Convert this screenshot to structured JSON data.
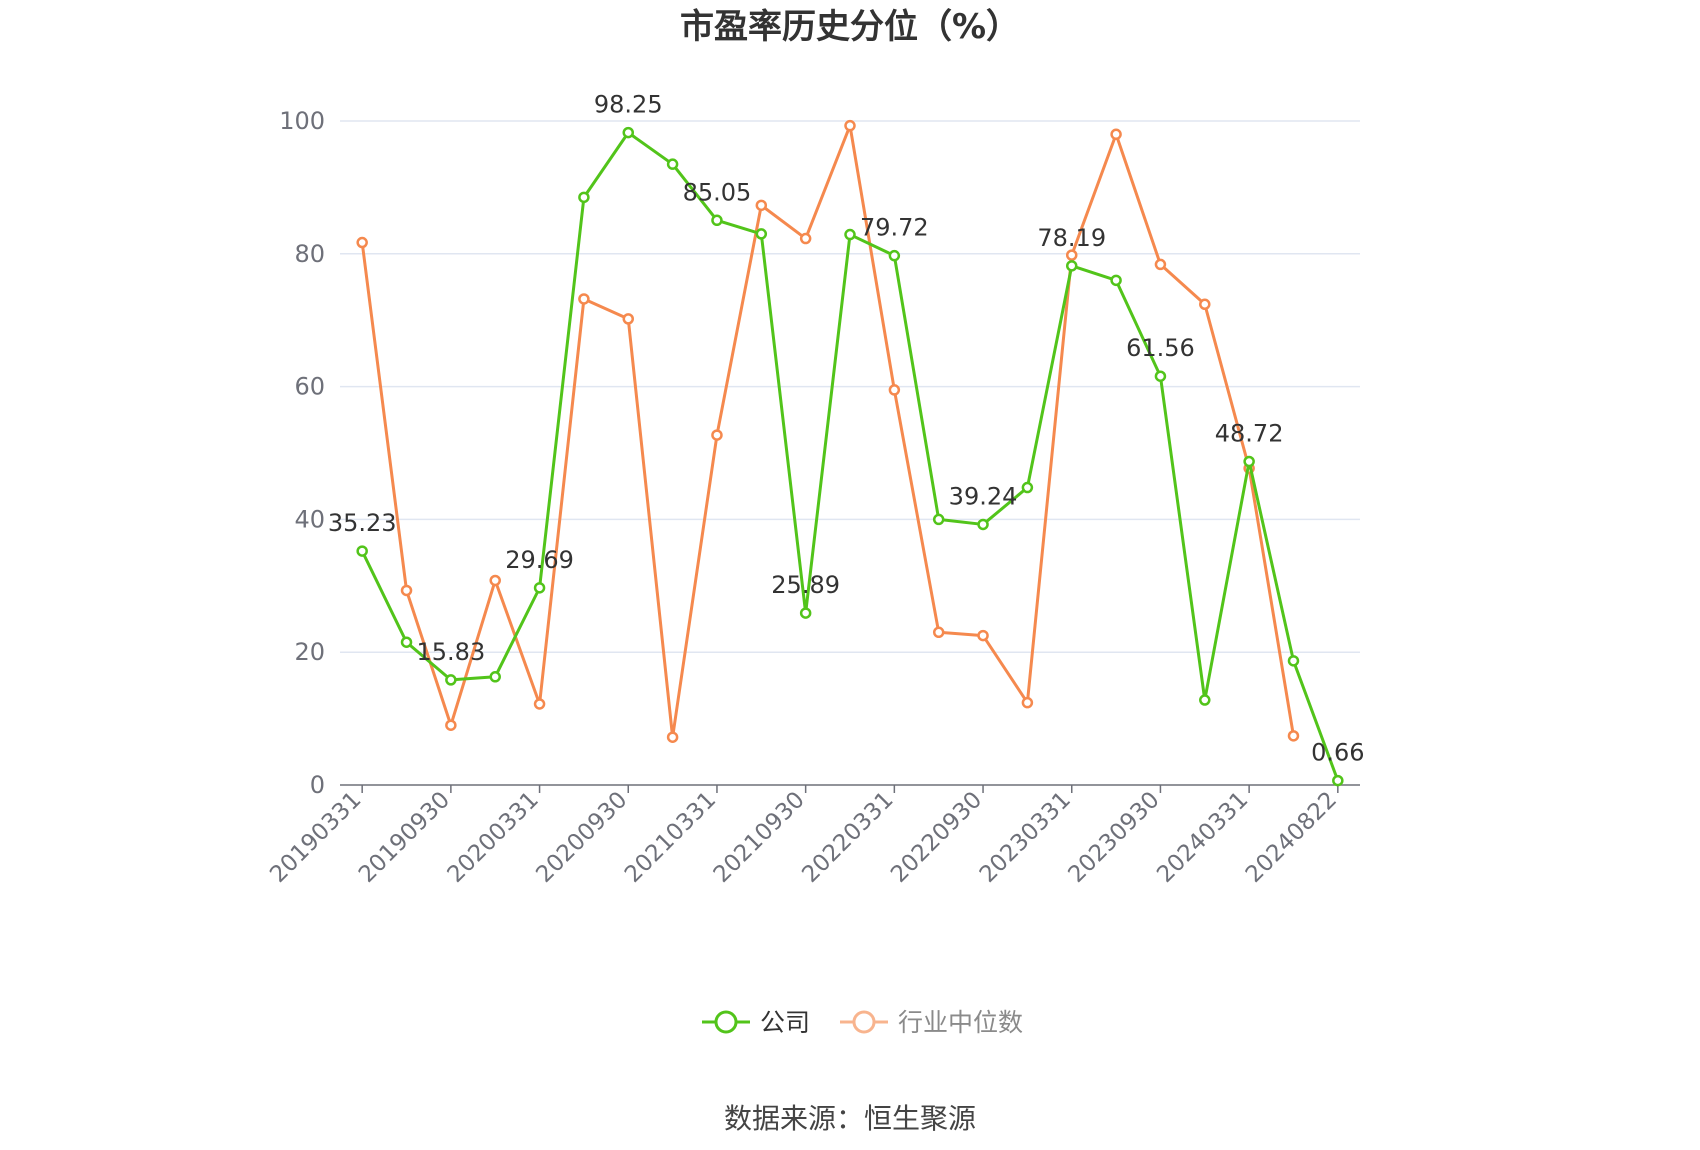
{
  "chart_data": {
    "type": "line",
    "title": "市盈率历史分位（%）",
    "source": "数据来源：恒生聚源",
    "ylim": [
      0,
      100
    ],
    "yticks": [
      0,
      20,
      40,
      60,
      80,
      100
    ],
    "grid": true,
    "legend_position": "bottom-center",
    "x": [
      "20190331",
      "20190630",
      "20190930",
      "20191231",
      "20200331",
      "20200630",
      "20200930",
      "20201231",
      "20210331",
      "20210630",
      "20210930",
      "20211231",
      "20220331",
      "20220630",
      "20220930",
      "20221231",
      "20230331",
      "20230630",
      "20230930",
      "20231231",
      "20240331",
      "20240630",
      "20240822"
    ],
    "xtick_labels": [
      "20190331",
      "20190930",
      "20200331",
      "20200930",
      "20210331",
      "20210930",
      "20220331",
      "20220930",
      "20230331",
      "20230930",
      "20240331",
      "20240822"
    ],
    "series": [
      {
        "name": "公司",
        "color": "#52c41a",
        "values": [
          35.23,
          21.5,
          15.83,
          16.3,
          29.69,
          88.5,
          98.25,
          93.5,
          85.05,
          83.0,
          25.89,
          82.9,
          79.72,
          40.0,
          39.24,
          44.8,
          78.19,
          76.0,
          61.56,
          12.8,
          48.72,
          18.7,
          0.66
        ],
        "labels": [
          "35.23",
          "",
          "15.83",
          "",
          "29.69",
          "",
          "98.25",
          "",
          "85.05",
          "",
          "25.89",
          "",
          "79.72",
          "",
          "39.24",
          "",
          "78.19",
          "",
          "61.56",
          "",
          "48.72",
          "",
          "0.66"
        ]
      },
      {
        "name": "行业中位数",
        "color": "#f5894e",
        "values": [
          81.7,
          29.3,
          9.0,
          30.8,
          12.2,
          73.2,
          70.2,
          7.2,
          52.7,
          87.3,
          82.3,
          99.3,
          59.5,
          23.0,
          22.5,
          12.4,
          79.8,
          98.0,
          78.4,
          72.4,
          47.7,
          7.4,
          null
        ]
      }
    ]
  }
}
